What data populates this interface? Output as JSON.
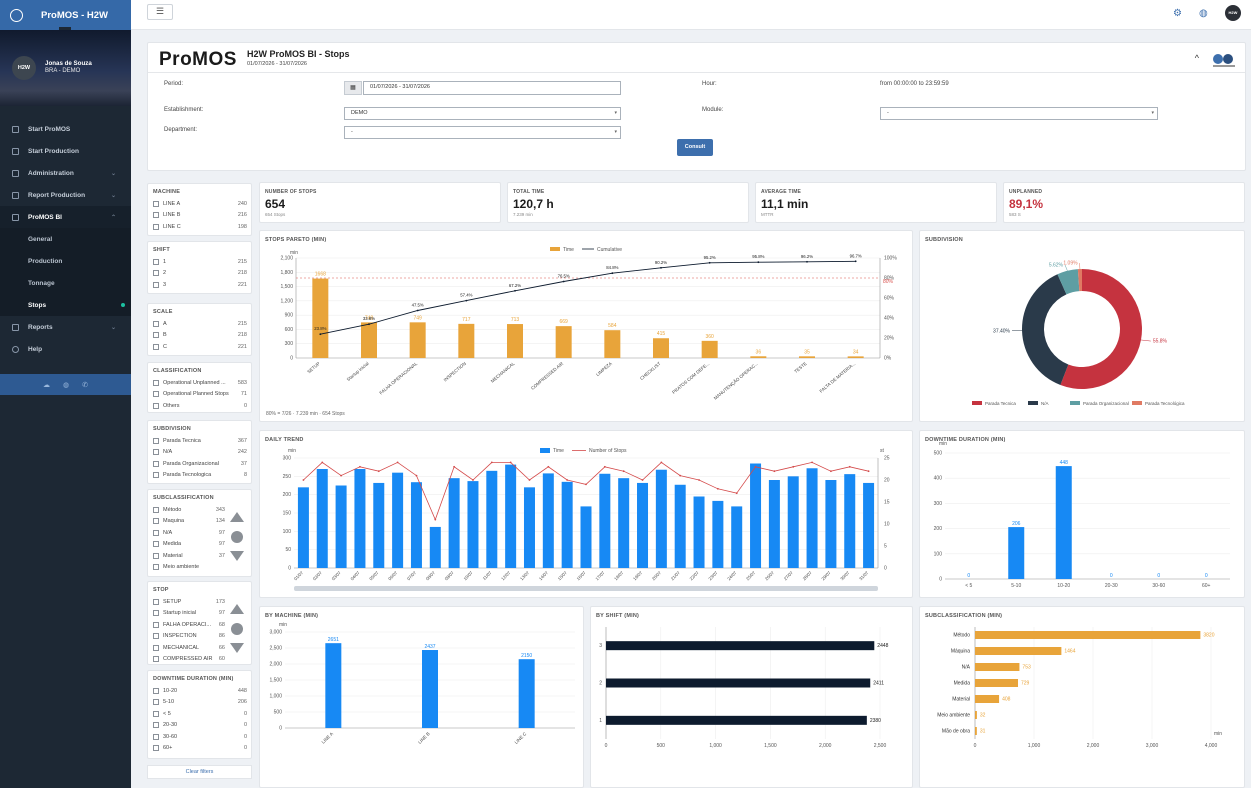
{
  "app": {
    "title": "ProMOS - H2W"
  },
  "user": {
    "initials": "H2W",
    "name": "Jonas de Souza",
    "org": "BRA - DEMO"
  },
  "menu": [
    {
      "label": "Start ProMOS"
    },
    {
      "label": "Start Production"
    },
    {
      "label": "Administration"
    },
    {
      "label": "Report Production"
    },
    {
      "label": "ProMOS BI"
    }
  ],
  "submenu": [
    {
      "label": "General"
    },
    {
      "label": "Production"
    },
    {
      "label": "Tonnage"
    },
    {
      "label": "Stops"
    }
  ],
  "menu2": [
    {
      "label": "Reports"
    },
    {
      "label": "Help"
    }
  ],
  "topbar": {
    "badge": "H2W"
  },
  "header": {
    "logo": "ProMOS",
    "title": "H2W ProMOS BI - Stops",
    "date_range": "01/07/2026 - 31/07/2026",
    "collapse": "^"
  },
  "form": {
    "period_label": "Period:",
    "period_value": "01/07/2026 - 31/07/2026",
    "hour_label": "Hour:",
    "hour_value": "from 00:00:00 to 23:59:59",
    "establishment_label": "Establishment:",
    "establishment_value": "DEMO",
    "module_label": "Module:",
    "module_value": "-",
    "department_label": "Department:",
    "department_value": "-",
    "consult_label": "Consult"
  },
  "filters": {
    "machine": {
      "title": "MACHINE",
      "items": [
        [
          "LINE A",
          "240"
        ],
        [
          "LINE B",
          "216"
        ],
        [
          "LINE C",
          "198"
        ]
      ]
    },
    "shift": {
      "title": "SHIFT",
      "items": [
        [
          "1",
          "215"
        ],
        [
          "2",
          "218"
        ],
        [
          "3",
          "221"
        ]
      ]
    },
    "scale": {
      "title": "SCALE",
      "items": [
        [
          "A",
          "215"
        ],
        [
          "B",
          "218"
        ],
        [
          "C",
          "221"
        ]
      ]
    },
    "classification": {
      "title": "CLASSIFICATION",
      "items": [
        [
          "Operational Unplanned ...",
          "583"
        ],
        [
          "Operational Planned Stops",
          "71"
        ],
        [
          "Others",
          "0"
        ]
      ]
    },
    "subdivision": {
      "title": "SUBDIVISION",
      "items": [
        [
          "Parada Tecnica",
          "367"
        ],
        [
          "N/A",
          "242"
        ],
        [
          "Parada Organizacional",
          "37"
        ],
        [
          "Parada Tecnologica",
          "8"
        ]
      ]
    },
    "subclassification": {
      "title": "SUBCLASSIFICATION",
      "items": [
        [
          "Método",
          "343"
        ],
        [
          "Maquina",
          "134"
        ],
        [
          "N/A",
          "97"
        ],
        [
          "Medida",
          "97"
        ],
        [
          "Material",
          "37"
        ],
        [
          "Meio ambiente",
          ""
        ]
      ]
    },
    "stop": {
      "title": "STOP",
      "items": [
        [
          "SETUP",
          "173"
        ],
        [
          "Startup inicial",
          "97"
        ],
        [
          "FALHA OPERACI...",
          "68"
        ],
        [
          "INSPECTION",
          "86"
        ],
        [
          "MECHANICAL",
          "66"
        ],
        [
          "COMPRESSED AIR",
          "60"
        ]
      ]
    },
    "downtime": {
      "title": "DOWNTIME DURATION (MIN)",
      "items": [
        [
          "10-20",
          "448"
        ],
        [
          "5-10",
          "206"
        ],
        [
          "< 5",
          "0"
        ],
        [
          "20-30",
          "0"
        ],
        [
          "30-60",
          "0"
        ],
        [
          "60+",
          "0"
        ]
      ]
    },
    "clear": "Clear filters"
  },
  "kpis": [
    {
      "title": "NUMBER OF STOPS",
      "value": "654",
      "sub": "654 Stops",
      "color": "#1c1c1c"
    },
    {
      "title": "TOTAL TIME",
      "value": "120,7 h",
      "sub": "7.239 min",
      "color": "#1c1c1c"
    },
    {
      "title": "AVERAGE TIME",
      "value": "11,1 min",
      "sub": "MTTR",
      "color": "#1c1c1c"
    },
    {
      "title": "UNPLANNED",
      "value": "89,1%",
      "sub": "583 S",
      "color": "#c5333f"
    }
  ],
  "colors": {
    "orange": "#e8a43a",
    "blue": "#1789f4",
    "navy": "#0d1b2e",
    "red": "#c5333f",
    "teal": "#5e9ea3",
    "salmon": "#e07a63",
    "dark": "#2a3a4a"
  },
  "charts": {
    "pareto": {
      "title": "STOPS PARETO (MIN)",
      "unit": "min",
      "legend_time": "Time",
      "legend_cum": "Cumulative",
      "footnote": "80% = 7/26 · 7.239 min · 654 Stops",
      "line80": "80%"
    },
    "daily": {
      "title": "DAILY TREND",
      "unit": "min",
      "unit2": "st",
      "legend_time": "Time",
      "legend_num": "Number of Stops"
    },
    "subdivision": {
      "title": "SUBDIVISION"
    },
    "duration": {
      "title": "DOWNTIME DURATION (MIN)",
      "unit": "min"
    },
    "machine": {
      "title": "BY MACHINE (MIN)",
      "unit": "min"
    },
    "shift": {
      "title": "BY SHIFT (MIN)"
    },
    "subclass": {
      "title": "SUBCLASSIFICATION (MIN)",
      "unit": "min"
    }
  },
  "chart_data": [
    {
      "id": "pareto",
      "type": "bar",
      "title": "STOPS PARETO (MIN)",
      "categories": [
        "SETUP",
        "Startup inicial",
        "FALHA OPERACIONAL",
        "INSPECTION",
        "MECHANICAL",
        "COMPRESSED AIR",
        "LIMPEZA",
        "CHECKLIST",
        "PRATOS COM DEFE...",
        "MANUTENÇÃO OPERAC...",
        "TESTE",
        "FALTA DE MATERIA..."
      ],
      "values": [
        1668,
        748,
        749,
        717,
        713,
        669,
        584,
        415,
        360,
        36,
        35,
        34
      ],
      "cumulative": [
        23.8,
        33.8,
        47.5,
        57.4,
        67.2,
        76.5,
        84.8,
        90.2,
        95.2,
        95.8,
        96.2,
        96.7
      ],
      "cumulative_labels": [
        "23.8%",
        "33.8%",
        "47.5%",
        "57.4%",
        "67.2%",
        "76.5%",
        "84.8%",
        "90.2%",
        "95.2%",
        "95.8%",
        "96.2%",
        "96.7%"
      ],
      "ylim": [
        0,
        2100
      ],
      "yticks": [
        "0",
        "300",
        "600",
        "900",
        "1,200",
        "1,500",
        "1,800",
        "2,100"
      ],
      "y2ticks": [
        "0%",
        "20%",
        "40%",
        "60%",
        "80%",
        "100%"
      ]
    },
    {
      "id": "daily",
      "type": "bar",
      "title": "DAILY TREND",
      "categories": [
        "01/07",
        "02/07",
        "03/07",
        "04/07",
        "05/07",
        "06/07",
        "07/07",
        "08/07",
        "09/07",
        "10/07",
        "11/07",
        "12/07",
        "13/07",
        "14/07",
        "15/07",
        "16/07",
        "17/07",
        "18/07",
        "19/07",
        "20/07",
        "21/07",
        "22/07",
        "23/07",
        "24/07",
        "25/07",
        "26/07",
        "27/07",
        "28/07",
        "29/07",
        "30/07",
        "31/07"
      ],
      "series": [
        {
          "name": "Time",
          "values": [
            220,
            270,
            225,
            270,
            232,
            260,
            234,
            112,
            245,
            237,
            265,
            282,
            220,
            258,
            235,
            168,
            257,
            245,
            232,
            268,
            227,
            195,
            183,
            168,
            285,
            240,
            250,
            272,
            240,
            256,
            232
          ]
        },
        {
          "name": "Number of Stops",
          "values": [
            20,
            24,
            21,
            23,
            22,
            24,
            21,
            11,
            23,
            20,
            24,
            24,
            20,
            23,
            20,
            19,
            23,
            22,
            20,
            24,
            21,
            20,
            18,
            17,
            23,
            22,
            23,
            24,
            22,
            23,
            22
          ]
        }
      ],
      "ylim": [
        0,
        300
      ],
      "y2lim": [
        0,
        25
      ],
      "yticks": [
        "0",
        "50",
        "100",
        "150",
        "200",
        "250",
        "300"
      ],
      "y2ticks": [
        "0",
        "5",
        "10",
        "15",
        "20",
        "25"
      ]
    },
    {
      "id": "subdivision",
      "type": "pie",
      "title": "SUBDIVISION",
      "categories": [
        "Parada Tecnica",
        "N/A",
        "Parada Organizacional",
        "Parada Tecnológica"
      ],
      "values": [
        55.8,
        37.4,
        5.6,
        1.1
      ],
      "labels": [
        "55.8%",
        "37.40%",
        "5.62%",
        "1.09%"
      ]
    },
    {
      "id": "duration",
      "type": "bar",
      "title": "DOWNTIME DURATION (MIN)",
      "categories": [
        "< 5",
        "5-10",
        "10-20",
        "20-30",
        "30-60",
        "60+"
      ],
      "values": [
        0,
        206,
        448,
        0,
        0,
        0
      ],
      "ylim": [
        0,
        500
      ],
      "yticks": [
        "0",
        "100",
        "200",
        "300",
        "400",
        "500"
      ]
    },
    {
      "id": "machine",
      "type": "bar",
      "title": "BY MACHINE (MIN)",
      "categories": [
        "LINE A",
        "LINE B",
        "LINE C"
      ],
      "values": [
        2651,
        2437,
        2150
      ],
      "ylim": [
        0,
        3000
      ],
      "yticks": [
        "0",
        "500",
        "1,000",
        "1,500",
        "2,000",
        "2,500",
        "3,000"
      ]
    },
    {
      "id": "shift",
      "type": "bar",
      "title": "BY SHIFT (MIN)",
      "categories": [
        "3",
        "2",
        "1"
      ],
      "values": [
        2448,
        2411,
        2380
      ],
      "xlim": [
        0,
        2500
      ],
      "xticks": [
        "0",
        "500",
        "1,000",
        "1,500",
        "2,000",
        "2,500"
      ]
    },
    {
      "id": "subclass",
      "type": "bar",
      "title": "SUBCLASSIFICATION (MIN)",
      "categories": [
        "Método",
        "Máquina",
        "N/A",
        "Medida",
        "Material",
        "Meio ambiente",
        "Mão de obra"
      ],
      "values": [
        3820,
        1464,
        753,
        729,
        408,
        32,
        31
      ],
      "xlim": [
        0,
        4000
      ],
      "xticks": [
        "0",
        "1,000",
        "2,000",
        "3,000",
        "4,000"
      ]
    }
  ]
}
